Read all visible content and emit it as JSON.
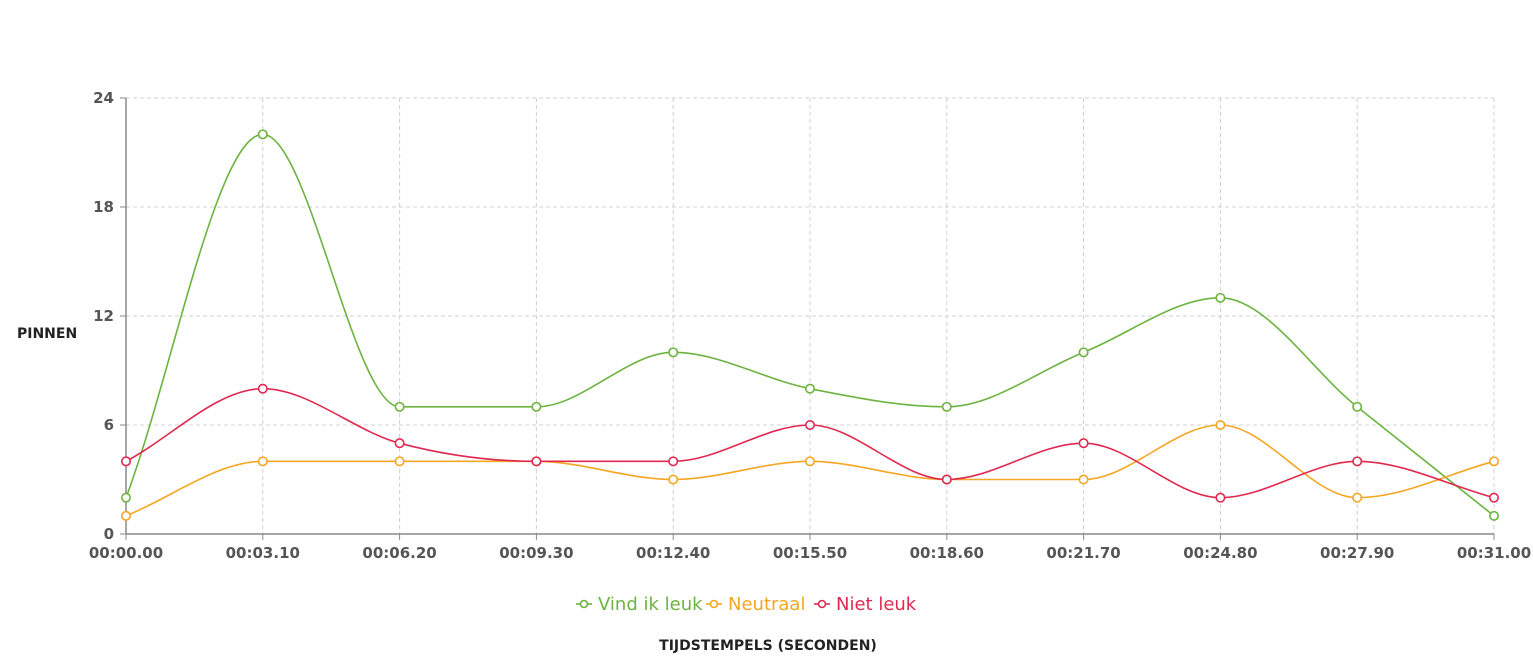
{
  "chart_data": {
    "type": "line",
    "title": "",
    "xlabel": "TIJDSTEMPELS (SECONDEN)",
    "ylabel": "PINNEN",
    "x": [
      "00:00.00",
      "00:03.10",
      "00:06.20",
      "00:09.30",
      "00:12.40",
      "00:15.50",
      "00:18.60",
      "00:21.70",
      "00:24.80",
      "00:27.90",
      "00:31.00"
    ],
    "yticks": [
      0,
      6,
      12,
      18,
      24
    ],
    "ylim": [
      0,
      24
    ],
    "grid": true,
    "curve": "smooth",
    "legend_position": "bottom",
    "series": [
      {
        "name": "Vind ik leuk",
        "color": "#6cb33f",
        "values": [
          2,
          22,
          7,
          7,
          10,
          8,
          7,
          10,
          13,
          7,
          1
        ]
      },
      {
        "name": "Neutraal",
        "color": "#f5a623",
        "values": [
          1,
          4,
          4,
          4,
          3,
          4,
          3,
          3,
          6,
          2,
          4
        ]
      },
      {
        "name": "Niet leuk",
        "color": "#e0294f",
        "values": [
          4,
          8,
          5,
          4,
          4,
          6,
          3,
          5,
          2,
          4,
          2
        ]
      }
    ]
  }
}
